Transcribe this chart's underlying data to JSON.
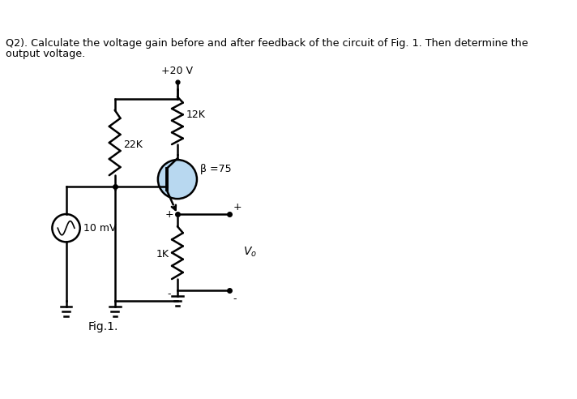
{
  "title_line1": "Q2). Calculate the voltage gain before and after feedback of the circuit of Fig. 1. Then determine the",
  "title_line2": "output voltage.",
  "fig_label": "Fig.1.",
  "vcc_label": "+20 V",
  "r1_label": "22K",
  "r2_label": "12K",
  "beta_label": "β =75",
  "re_label": "1K",
  "vs_label": "10 mV",
  "vo_label": "V",
  "bg_color": "#ffffff",
  "line_color": "#000000",
  "transistor_fill": "#b8d8f0",
  "plus_sign": "+",
  "minus_sign": "-"
}
